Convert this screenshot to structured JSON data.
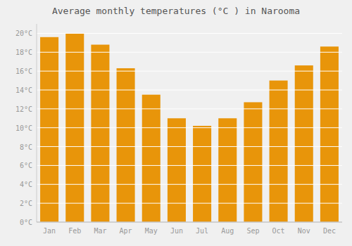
{
  "chart_data": {
    "type": "bar",
    "title": "Average monthly temperatures (°C ) in Narooma",
    "categories": [
      "Jan",
      "Feb",
      "Mar",
      "Apr",
      "May",
      "Jun",
      "Jul",
      "Aug",
      "Sep",
      "Oct",
      "Nov",
      "Dec"
    ],
    "values": [
      19.6,
      20.0,
      18.8,
      16.3,
      13.5,
      11.0,
      10.2,
      11.0,
      12.7,
      15.0,
      16.6,
      18.6
    ],
    "color": "#E8950A",
    "ylim": [
      0,
      21
    ],
    "yticks": [
      {
        "value": 0,
        "label": "0°C"
      },
      {
        "value": 2,
        "label": "2°C"
      },
      {
        "value": 4,
        "label": "4°C"
      },
      {
        "value": 6,
        "label": "6°C"
      },
      {
        "value": 8,
        "label": "8°C"
      },
      {
        "value": 10,
        "label": "10°C"
      },
      {
        "value": 12,
        "label": "12°C"
      },
      {
        "value": 14,
        "label": "14°C"
      },
      {
        "value": 16,
        "label": "16°C"
      },
      {
        "value": 18,
        "label": "18°C"
      },
      {
        "value": 20,
        "label": "20°C"
      }
    ],
    "grid": true
  }
}
